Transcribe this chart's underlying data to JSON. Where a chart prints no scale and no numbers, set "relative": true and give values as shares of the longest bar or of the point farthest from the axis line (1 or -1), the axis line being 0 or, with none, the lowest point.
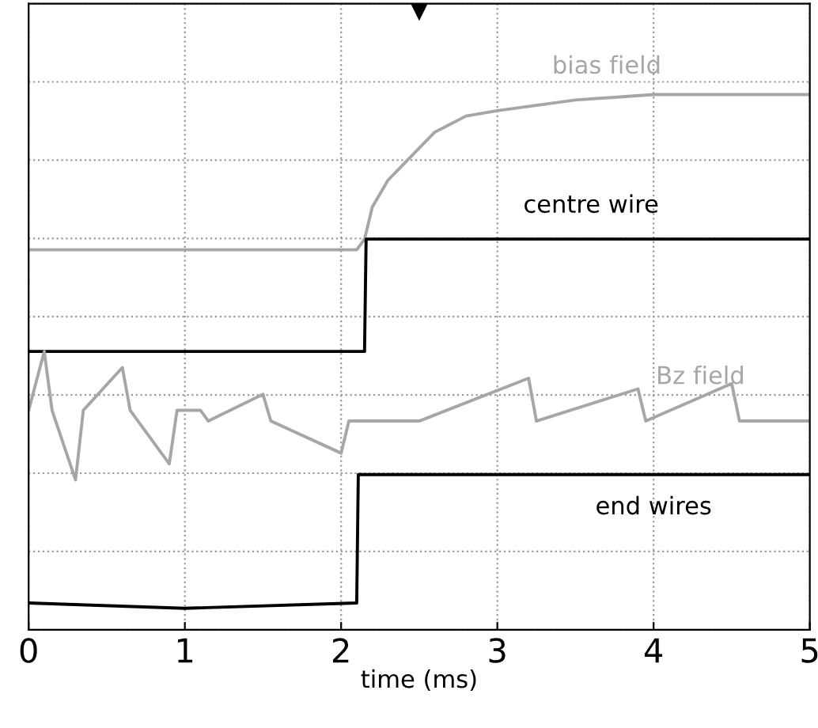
{
  "chart_data": {
    "type": "line",
    "relative": true,
    "xlabel": "time (ms)",
    "xlim": [
      0,
      5
    ],
    "xticks": [
      0,
      1,
      2,
      3,
      4,
      5
    ],
    "grid": true,
    "tick_labels": "x",
    "legend": false,
    "line_style": "solid",
    "marker": "none",
    "series": [
      {
        "name": "bias field",
        "color": "#a6a6a6",
        "x": [
          0,
          2.1,
          2.15,
          2.2,
          2.3,
          2.4,
          2.6,
          2.8,
          3.0,
          3.5,
          4,
          5
        ],
        "values": [
          0.71,
          0.71,
          0.73,
          0.79,
          0.84,
          0.87,
          0.93,
          0.96,
          0.97,
          0.99,
          1.0,
          1.0
        ]
      },
      {
        "name": "centre wire",
        "color": "#000000",
        "x": [
          0,
          2.15,
          2.16,
          5
        ],
        "values": [
          0.52,
          0.52,
          0.73,
          0.73
        ]
      },
      {
        "name": "Bz field",
        "color": "#a6a6a6",
        "x": [
          0,
          0.1,
          0.15,
          0.3,
          0.35,
          0.6,
          0.65,
          0.9,
          0.95,
          1.1,
          1.15,
          1.5,
          1.55,
          2.0,
          2.05,
          2.5,
          3.2,
          3.25,
          3.9,
          3.95,
          4.5,
          4.55,
          5
        ],
        "values": [
          0.41,
          0.52,
          0.41,
          0.28,
          0.41,
          0.49,
          0.41,
          0.31,
          0.41,
          0.41,
          0.39,
          0.44,
          0.39,
          0.33,
          0.39,
          0.39,
          0.47,
          0.39,
          0.45,
          0.39,
          0.46,
          0.39,
          0.39
        ]
      },
      {
        "name": "end wires",
        "color": "#000000",
        "x": [
          0,
          1.0,
          2.1,
          2.11,
          5
        ],
        "values": [
          0.05,
          0.04,
          0.05,
          0.29,
          0.29
        ]
      }
    ]
  }
}
